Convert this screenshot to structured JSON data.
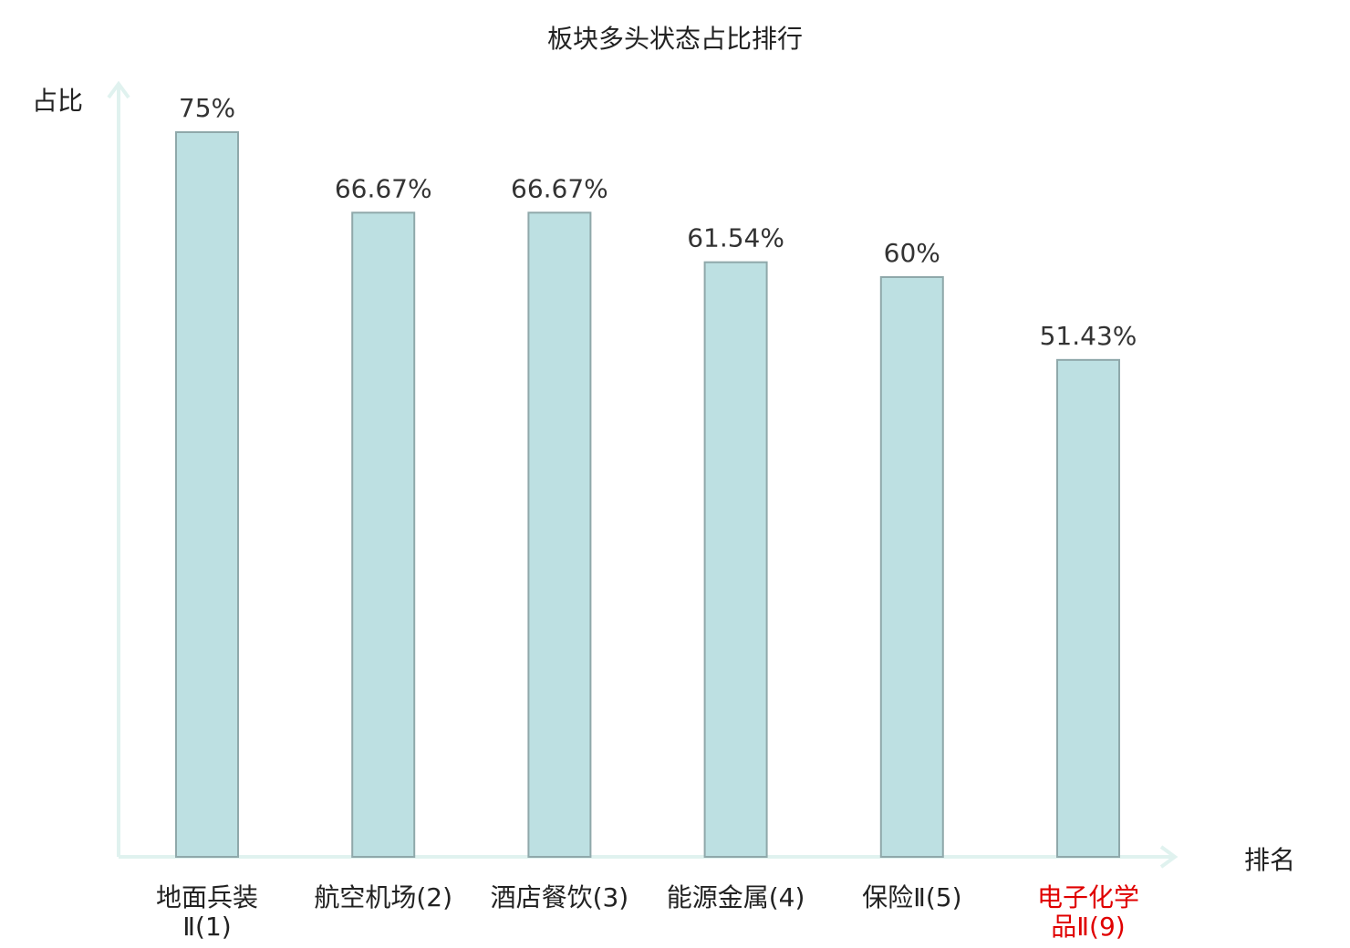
{
  "chart_data": {
    "type": "bar",
    "title": "板块多头状态占比排行",
    "ylabel": "占比",
    "xlabel": "排名",
    "ylim": [
      0,
      80
    ],
    "grid": false,
    "categories": [
      [
        "地面兵装",
        "Ⅱ(1)"
      ],
      [
        "航空机场(2)"
      ],
      [
        "酒店餐饮(3)"
      ],
      [
        "能源金属(4)"
      ],
      [
        "保险Ⅱ(5)"
      ],
      [
        "电子化学",
        "品Ⅱ(9)"
      ]
    ],
    "values": [
      75,
      66.67,
      66.67,
      61.54,
      60,
      51.43
    ],
    "value_labels": [
      "75%",
      "66.67%",
      "66.67%",
      "61.54%",
      "60%",
      "51.43%"
    ],
    "highlight_index": 5
  },
  "colors": {
    "bar_fill": "#bde0e2",
    "bar_stroke": "#8fa8aa",
    "axis": "#e0f2ef",
    "label": "#333333",
    "highlight": "#e00000"
  }
}
